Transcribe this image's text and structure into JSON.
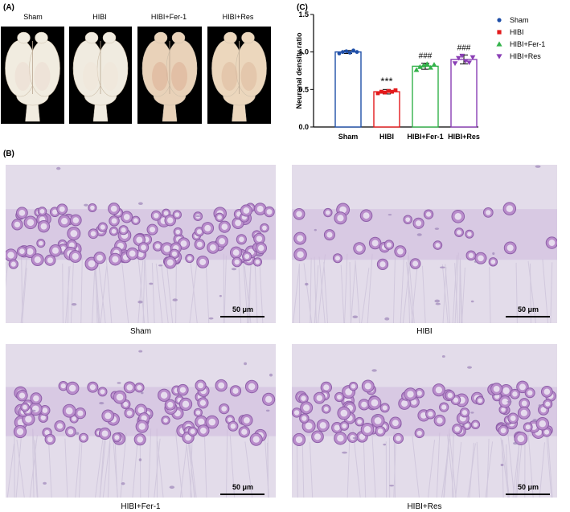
{
  "panels": {
    "a_label": "(A)",
    "b_label": "(B)",
    "c_label": "(C)"
  },
  "brains": [
    {
      "label": "Sham",
      "color": "#f1ece0",
      "tint": "#ebd9cf"
    },
    {
      "label": "HIBI",
      "color": "#f0ebe0",
      "tint": "#efe4d8"
    },
    {
      "label": "HIBI+Fer-1",
      "color": "#e9d2b9",
      "tint": "#d9a98e"
    },
    {
      "label": "HIBI+Res",
      "color": "#ecd7bd",
      "tint": "#dcb496"
    }
  ],
  "micrographs": [
    {
      "label": "Sham",
      "scale": "50 μm",
      "density": "high"
    },
    {
      "label": "HIBI",
      "scale": "50 μm",
      "density": "low"
    },
    {
      "label": "HIBI+Fer-1",
      "scale": "50 μm",
      "density": "medium"
    },
    {
      "label": "HIBI+Res",
      "scale": "50 μm",
      "density": "medium-high"
    }
  ],
  "chart_data": {
    "type": "bar",
    "ylabel": "Neuronal density ratio",
    "ylim": [
      0,
      1.5
    ],
    "yticks": [
      "0.0",
      "0.5",
      "1.0",
      "1.5"
    ],
    "categories": [
      "Sham",
      "HIBI",
      "HIBI+Fer-1",
      "HIBI+Res"
    ],
    "values": [
      1.0,
      0.47,
      0.81,
      0.9
    ],
    "errors": [
      0.02,
      0.03,
      0.04,
      0.06
    ],
    "points": [
      [
        0.98,
        1.0,
        1.01,
        0.99,
        1.02,
        1.0
      ],
      [
        0.45,
        0.47,
        0.46,
        0.48,
        0.47,
        0.49
      ],
      [
        0.76,
        0.8,
        0.82,
        0.84,
        0.79,
        0.83
      ],
      [
        0.85,
        0.92,
        0.95,
        0.88,
        0.86,
        0.93
      ]
    ],
    "annotations": [
      "",
      "***",
      "###",
      "###"
    ],
    "colors": [
      "#1f4fa8",
      "#e31a1c",
      "#33b24a",
      "#8a3fb5"
    ],
    "legend": [
      {
        "name": "Sham",
        "marker": "circle"
      },
      {
        "name": "HIBI",
        "marker": "square"
      },
      {
        "name": "HIBI+Fer-1",
        "marker": "triangle-up"
      },
      {
        "name": "HIBI+Res",
        "marker": "triangle-down"
      }
    ],
    "legend_position": "right"
  }
}
